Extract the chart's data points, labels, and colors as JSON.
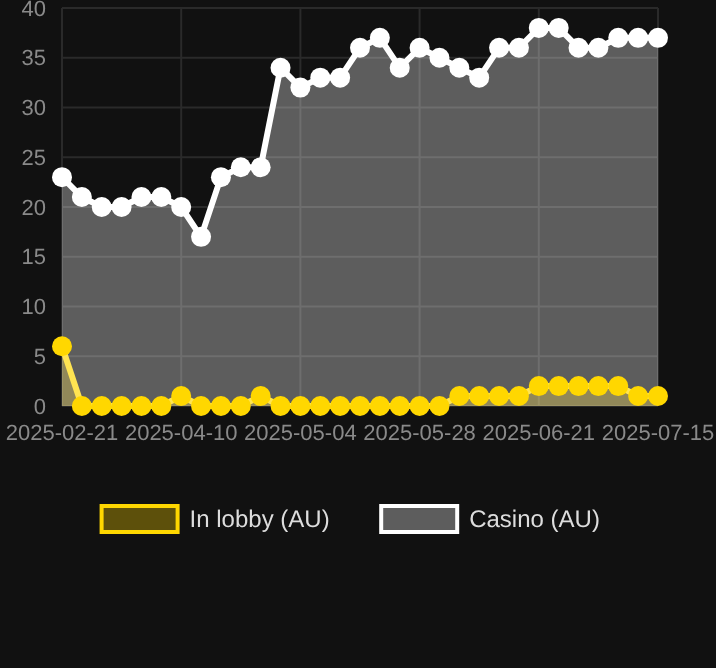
{
  "chart_data": {
    "type": "area",
    "categories": [
      "2025-02-21",
      null,
      null,
      null,
      null,
      null,
      "2025-04-10",
      null,
      null,
      null,
      null,
      null,
      "2025-05-04",
      null,
      null,
      null,
      null,
      null,
      "2025-05-28",
      null,
      null,
      null,
      null,
      null,
      "2025-06-21",
      null,
      null,
      null,
      null,
      null,
      "2025-07-15"
    ],
    "series": [
      {
        "name": "In lobby (AU)",
        "color": "#ffd700",
        "values": [
          6,
          0,
          0,
          0,
          0,
          0,
          1,
          0,
          0,
          0,
          1,
          0,
          0,
          0,
          0,
          0,
          0,
          0,
          0,
          0,
          1,
          1,
          1,
          1,
          2,
          2,
          2,
          2,
          2,
          1,
          1
        ]
      },
      {
        "name": "Casino (AU)",
        "color": "#ffffff",
        "values": [
          23,
          21,
          20,
          20,
          21,
          21,
          20,
          17,
          23,
          24,
          24,
          34,
          32,
          33,
          33,
          36,
          37,
          34,
          36,
          35,
          34,
          33,
          36,
          36,
          38,
          38,
          36,
          36,
          37,
          37,
          37
        ]
      }
    ],
    "ylim": [
      0,
      40
    ],
    "yticks": [
      0,
      5,
      10,
      15,
      20,
      25,
      30,
      35,
      40
    ],
    "grid": true,
    "legend": "bottom",
    "marker": "circle",
    "line_style": "solid"
  }
}
